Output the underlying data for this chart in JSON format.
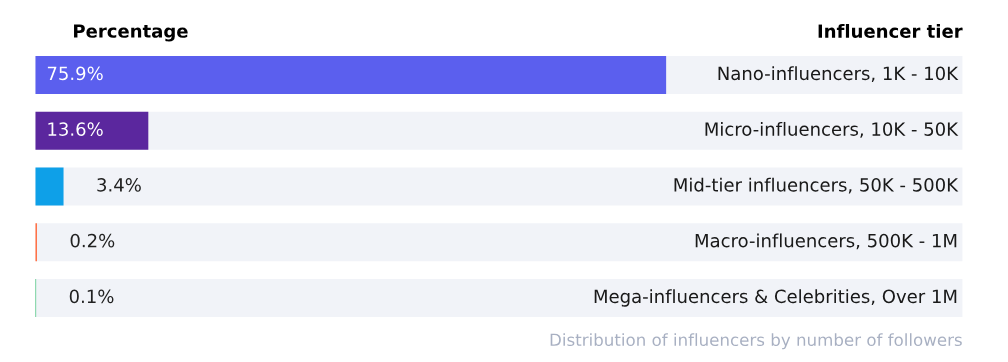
{
  "chart_data": {
    "type": "bar",
    "orientation": "horizontal",
    "xlabel": "Percentage",
    "ylabel": "Influencer tier",
    "categories": [
      "Nano-influencers, 1K - 10K",
      "Micro-influencers, 10K - 50K",
      "Mid-tier influencers, 50K - 500K",
      "Macro-influencers, 500K - 1M",
      "Mega-influencers & Celebrities, Over 1M"
    ],
    "values": [
      75.9,
      13.6,
      3.4,
      0.2,
      0.1
    ],
    "colors": [
      "#5b5fee",
      "#5b279e",
      "#0ea0e8",
      "#ff6a3d",
      "#2ebd6b"
    ],
    "value_labels": [
      "75.9%",
      "13.6%",
      "3.4%",
      "0.2%",
      "0.1%"
    ],
    "annotations": [
      "Distribution of influencers by number of followers"
    ],
    "legend": false
  }
}
